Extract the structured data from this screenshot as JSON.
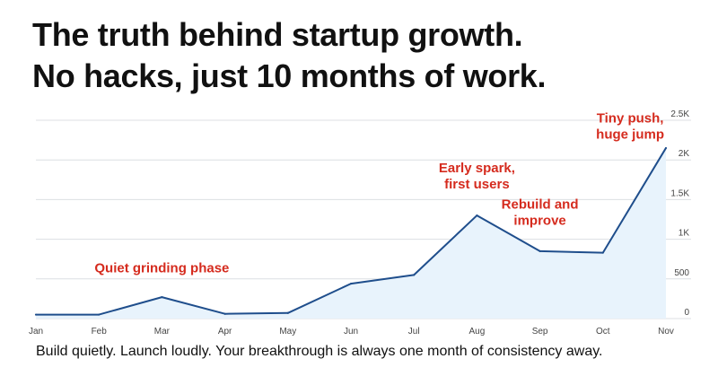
{
  "headline": {
    "line1": "The truth behind startup growth.",
    "line2": "No hacks, just 10 months of work."
  },
  "caption": "Build quietly. Launch loudly. Your breakthrough is always one month of consistency away.",
  "colors": {
    "line": "#1f4e8c",
    "area": "#e8f3fc",
    "grid": "#dcdfe3",
    "annotation": "#d52b1e"
  },
  "chart_data": {
    "type": "area",
    "title": "",
    "xlabel": "",
    "ylabel": "",
    "categories": [
      "Jan",
      "Feb",
      "Mar",
      "Apr",
      "May",
      "Jun",
      "Jul",
      "Aug",
      "Sep",
      "Oct",
      "Nov"
    ],
    "values": [
      50,
      50,
      270,
      60,
      70,
      440,
      550,
      1300,
      850,
      830,
      2150
    ],
    "ylim": [
      0,
      2500
    ],
    "yticks": [
      0,
      500,
      1000,
      1500,
      2000,
      2500
    ],
    "ytick_labels": [
      "0",
      "500",
      "1K",
      "1.5K",
      "2K",
      "2.5K"
    ],
    "y_axis_side": "right",
    "grid": true,
    "annotations": [
      {
        "lines": [
          "Quiet grinding phase"
        ],
        "x": "Mar",
        "y": 580
      },
      {
        "lines": [
          "Early spark,",
          "first users"
        ],
        "x": "Aug",
        "y": 1640
      },
      {
        "lines": [
          "Rebuild and",
          "improve"
        ],
        "x": "Sep",
        "y": 1180
      },
      {
        "lines": [
          "Tiny push,",
          "huge jump"
        ],
        "x": "Nov",
        "y": 2270
      }
    ]
  }
}
